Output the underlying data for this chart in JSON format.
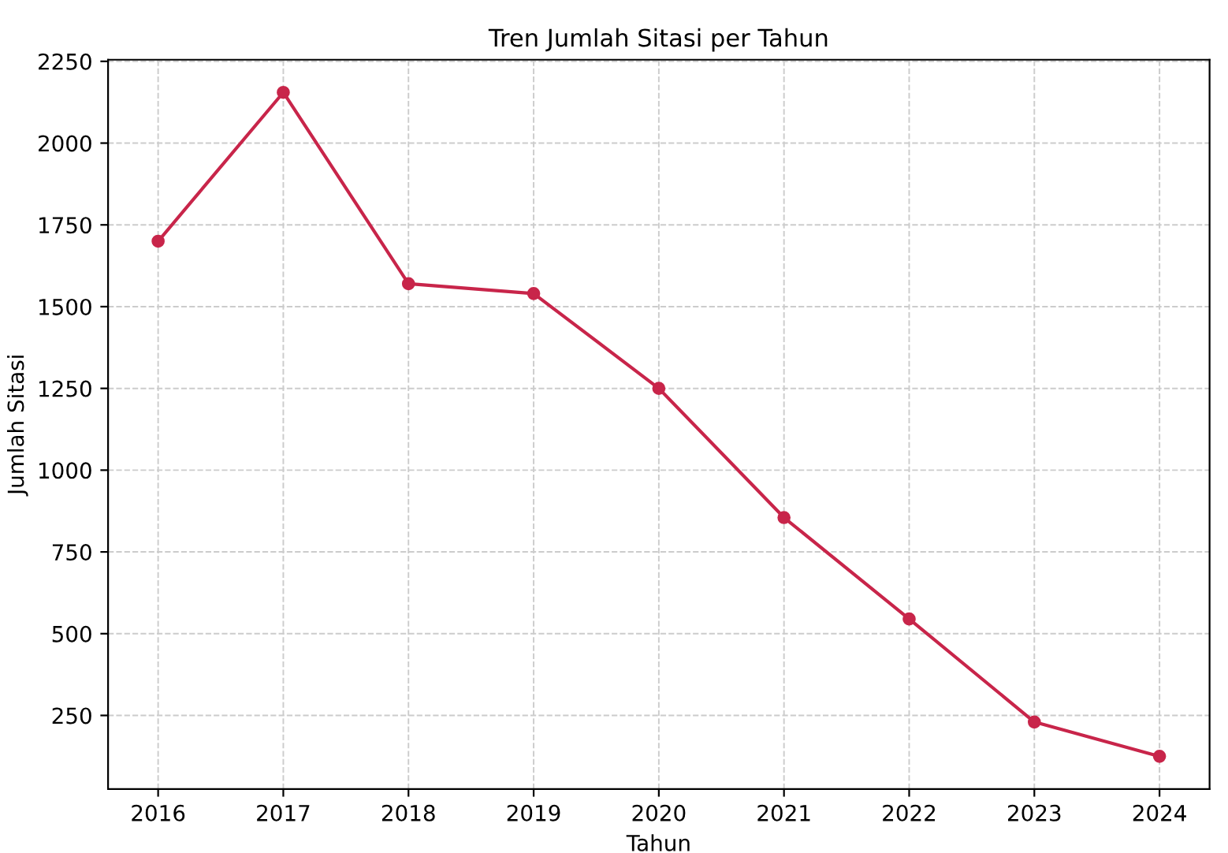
{
  "chart_data": {
    "type": "line",
    "title": "Tren Jumlah Sitasi per Tahun",
    "xlabel": "Tahun",
    "ylabel": "Jumlah Sitasi",
    "x": [
      2016,
      2017,
      2018,
      2019,
      2020,
      2021,
      2022,
      2023,
      2024
    ],
    "series": [
      {
        "color": "#c8254a",
        "values": [
          1700,
          2155,
          1570,
          1540,
          1250,
          855,
          545,
          230,
          125
        ]
      }
    ],
    "xlim": [
      2015.6,
      2024.4
    ],
    "xticks": [
      2016,
      2017,
      2018,
      2019,
      2020,
      2021,
      2022,
      2023,
      2024
    ],
    "ylim": [
      25,
      2255
    ],
    "yticks": [
      250,
      500,
      750,
      1000,
      1250,
      1500,
      1750,
      2000,
      2250
    ],
    "grid": true,
    "marker": "circle",
    "line_style": "solid"
  }
}
